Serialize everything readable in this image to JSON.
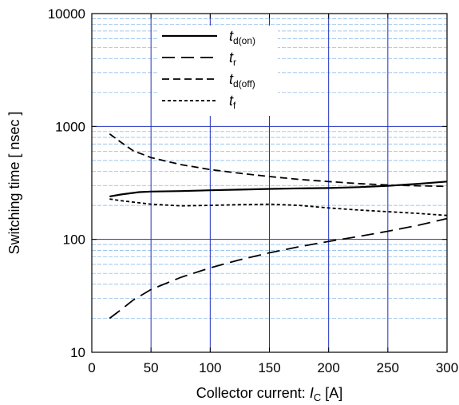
{
  "chart_data": {
    "type": "line",
    "title": "",
    "xlabel": {
      "prefix": "Collector current: ",
      "var": "I",
      "sub": "C",
      "unit": " [A]"
    },
    "ylabel": "Switching time  [ nsec ]",
    "xlim": [
      0,
      300
    ],
    "ylim": [
      10,
      10000
    ],
    "yscale": "log",
    "grid": true,
    "legend_position": "top-center",
    "x_ticks": [
      0,
      50,
      100,
      150,
      200,
      250,
      300
    ],
    "x_tick_labels": [
      "0",
      "50",
      "100",
      "150",
      "200",
      "250",
      "300"
    ],
    "y_ticks": [
      10,
      100,
      1000,
      10000
    ],
    "y_tick_labels": [
      "10",
      "100",
      "1000",
      "10000"
    ],
    "series": [
      {
        "name": "t",
        "sub": "d(on)",
        "dash": "solid",
        "x": [
          15,
          25,
          40,
          50,
          75,
          100,
          125,
          150,
          175,
          200,
          225,
          250,
          275,
          300
        ],
        "y": [
          240,
          250,
          262,
          265,
          268,
          272,
          276,
          280,
          283,
          285,
          290,
          298,
          310,
          325
        ]
      },
      {
        "name": "t",
        "sub": "r",
        "dash": "long",
        "x": [
          15,
          25,
          35,
          50,
          75,
          100,
          125,
          150,
          175,
          200,
          225,
          250,
          275,
          300
        ],
        "y": [
          20,
          24,
          29,
          36,
          46,
          56,
          66,
          76,
          86,
          96,
          106,
          118,
          133,
          153
        ]
      },
      {
        "name": "t",
        "sub": "d(off)",
        "dash": "medium",
        "x": [
          15,
          25,
          35,
          50,
          75,
          100,
          125,
          150,
          175,
          200,
          225,
          250,
          275,
          300
        ],
        "y": [
          860,
          720,
          610,
          530,
          460,
          415,
          385,
          360,
          340,
          325,
          312,
          303,
          298,
          295
        ]
      },
      {
        "name": "t",
        "sub": "f",
        "dash": "short",
        "x": [
          15,
          25,
          50,
          75,
          100,
          125,
          150,
          175,
          200,
          225,
          250,
          275,
          300
        ],
        "y": [
          228,
          220,
          205,
          198,
          200,
          203,
          205,
          200,
          190,
          182,
          176,
          170,
          163
        ]
      }
    ]
  }
}
